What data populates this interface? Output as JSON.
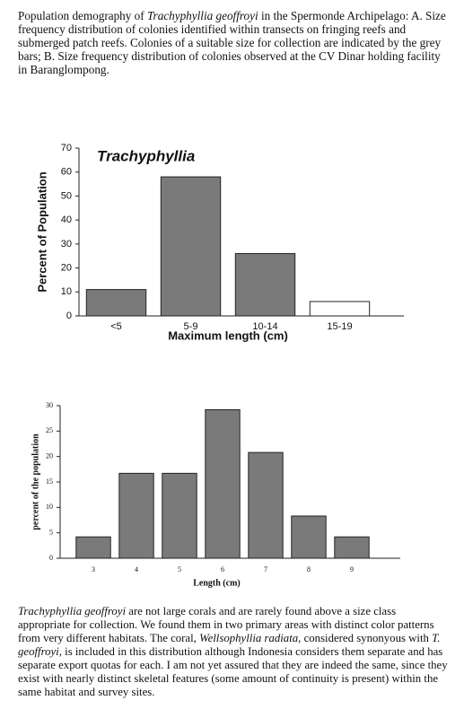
{
  "caption": [
    {
      "text": "Population demography of ",
      "italic": false
    },
    {
      "text": "Trachyphyllia geoffroyi",
      "italic": true
    },
    {
      "text": " in the Spermonde Archipelago:  A. Size frequency distribution of colonies identified within transects on fringing reefs and submerged patch reefs.  Colonies of a suitable size for collection are indicated by the grey bars; B. Size frequency distribution of colonies observed at the CV Dinar holding facility in Baranglompong.",
      "italic": false
    }
  ],
  "chart_data": [
    {
      "type": "bar",
      "title": "Trachyphyllia",
      "ylabel": "Percent of Population",
      "xlabel": "Maximum length (cm)",
      "categories": [
        "<5",
        "5-9",
        "10-14",
        "15-19"
      ],
      "values": [
        11,
        58,
        26,
        6
      ],
      "colors": [
        "#7a7a7a",
        "#7a7a7a",
        "#7a7a7a",
        "#ffffff"
      ],
      "ylim": [
        0,
        70
      ],
      "yticks": [
        0,
        10,
        20,
        30,
        40,
        50,
        60,
        70
      ]
    },
    {
      "type": "bar",
      "ylabel": "percent of the population",
      "xlabel": "Length (cm)",
      "categories": [
        "3",
        "4",
        "5",
        "6",
        "7",
        "8",
        "9"
      ],
      "values": [
        4.2,
        16.7,
        16.7,
        29.2,
        20.8,
        8.3,
        4.2
      ],
      "colors": [
        "#7a7a7a",
        "#7a7a7a",
        "#7a7a7a",
        "#7a7a7a",
        "#7a7a7a",
        "#7a7a7a",
        "#7a7a7a"
      ],
      "ylim": [
        0,
        30
      ],
      "yticks": [
        0,
        5,
        10,
        15,
        20,
        25,
        30
      ]
    }
  ],
  "body": [
    {
      "text": "Trachyphyllia geoffroyi",
      "italic": true
    },
    {
      "text": "  are not large corals and  are rarely found above a size class appropriate for collection. We found them in two primary areas with distinct color patterns from very different habitats. The coral, ",
      "italic": false
    },
    {
      "text": "Wellsophyllia radiata",
      "italic": true
    },
    {
      "text": ", considered synonyous with ",
      "italic": false
    },
    {
      "text": "T. geoffroyi",
      "italic": true
    },
    {
      "text": ", is included in this distribution although Indonesia considers them separate and has separate export quotas for each. I am not yet assured that they are indeed the same, since they exist with nearly distinct skeletal features (some amount of continuity is present) within the same habitat and survey sites.",
      "italic": false
    }
  ]
}
